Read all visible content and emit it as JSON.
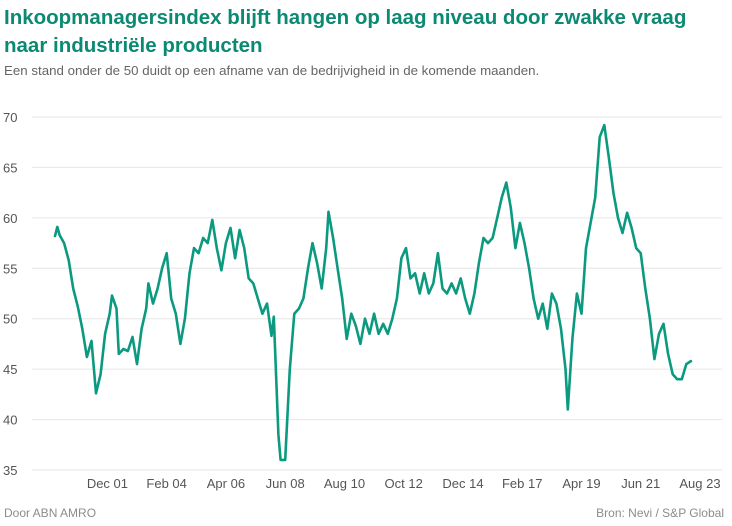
{
  "header": {
    "title": "Inkoopmanagersindex blijft hangen op laag niveau door zwakke vraag naar industriële producten",
    "subtitle": "Een stand onder de 50 duidt op een afname van de bedrijvigheid in de komende maanden."
  },
  "footer": {
    "credit": "Door ABN AMRO",
    "source": "Bron: Nevi / S&P Global"
  },
  "colors": {
    "line": "#0b9a80",
    "title": "#0b8a73",
    "grid": "#e6e6e6"
  },
  "chart_data": {
    "type": "line",
    "title": "Inkoopmanagersindex blijft hangen op laag niveau door zwakke vraag naar industriële producten",
    "ylim": [
      35,
      70
    ],
    "xlim": [
      "2000-01",
      "2023-08"
    ],
    "yticks": [
      35,
      40,
      45,
      50,
      55,
      60,
      65,
      70
    ],
    "xticks": [
      {
        "label": "Dec 01",
        "date": "2001-12"
      },
      {
        "label": "Feb 04",
        "date": "2004-02"
      },
      {
        "label": "Apr 06",
        "date": "2006-04"
      },
      {
        "label": "Jun 08",
        "date": "2008-06"
      },
      {
        "label": "Aug 10",
        "date": "2010-08"
      },
      {
        "label": "Oct 12",
        "date": "2012-10"
      },
      {
        "label": "Dec 14",
        "date": "2014-12"
      },
      {
        "label": "Feb 17",
        "date": "2017-02"
      },
      {
        "label": "Apr 19",
        "date": "2019-04"
      },
      {
        "label": "Jun 21",
        "date": "2021-06"
      },
      {
        "label": "Aug 23",
        "date": "2023-08"
      }
    ],
    "grid": true,
    "series": [
      {
        "points": [
          [
            "2000-01",
            58.2
          ],
          [
            "2000-02",
            59.1
          ],
          [
            "2000-03",
            58.3
          ],
          [
            "2000-05",
            57.5
          ],
          [
            "2000-07",
            55.8
          ],
          [
            "2000-09",
            53.0
          ],
          [
            "2000-11",
            51.2
          ],
          [
            "2001-01",
            49.0
          ],
          [
            "2001-03",
            46.2
          ],
          [
            "2001-05",
            47.8
          ],
          [
            "2001-07",
            42.6
          ],
          [
            "2001-09",
            44.5
          ],
          [
            "2001-11",
            48.5
          ],
          [
            "2002-01",
            50.5
          ],
          [
            "2002-02",
            52.3
          ],
          [
            "2002-04",
            51.0
          ],
          [
            "2002-05",
            46.5
          ],
          [
            "2002-07",
            47.0
          ],
          [
            "2002-09",
            46.8
          ],
          [
            "2002-11",
            48.2
          ],
          [
            "2003-01",
            45.5
          ],
          [
            "2003-03",
            49.0
          ],
          [
            "2003-05",
            51.0
          ],
          [
            "2003-06",
            53.5
          ],
          [
            "2003-08",
            51.5
          ],
          [
            "2003-10",
            53.0
          ],
          [
            "2003-12",
            55.0
          ],
          [
            "2004-02",
            56.5
          ],
          [
            "2004-04",
            52.0
          ],
          [
            "2004-06",
            50.5
          ],
          [
            "2004-08",
            47.5
          ],
          [
            "2004-10",
            50.0
          ],
          [
            "2004-12",
            54.5
          ],
          [
            "2005-02",
            57.0
          ],
          [
            "2005-04",
            56.5
          ],
          [
            "2005-06",
            58.0
          ],
          [
            "2005-08",
            57.5
          ],
          [
            "2005-10",
            59.8
          ],
          [
            "2005-12",
            57.0
          ],
          [
            "2006-02",
            54.8
          ],
          [
            "2006-04",
            57.5
          ],
          [
            "2006-06",
            59.0
          ],
          [
            "2006-08",
            56.0
          ],
          [
            "2006-10",
            58.8
          ],
          [
            "2006-12",
            57.0
          ],
          [
            "2007-02",
            54.0
          ],
          [
            "2007-04",
            53.5
          ],
          [
            "2007-06",
            52.0
          ],
          [
            "2007-08",
            50.5
          ],
          [
            "2007-10",
            51.5
          ],
          [
            "2007-12",
            48.3
          ],
          [
            "2008-01",
            50.2
          ],
          [
            "2008-03",
            38.5
          ],
          [
            "2008-04",
            36.0
          ],
          [
            "2008-06",
            36.0
          ],
          [
            "2008-08",
            45.0
          ],
          [
            "2008-10",
            50.5
          ],
          [
            "2008-12",
            51.0
          ],
          [
            "2009-02",
            52.0
          ],
          [
            "2009-04",
            55.0
          ],
          [
            "2009-06",
            57.5
          ],
          [
            "2009-08",
            55.5
          ],
          [
            "2009-10",
            53.0
          ],
          [
            "2009-12",
            57.0
          ],
          [
            "2010-01",
            60.6
          ],
          [
            "2010-03",
            58.0
          ],
          [
            "2010-05",
            55.0
          ],
          [
            "2010-07",
            52.0
          ],
          [
            "2010-09",
            48.0
          ],
          [
            "2010-11",
            50.5
          ],
          [
            "2011-01",
            49.3
          ],
          [
            "2011-03",
            47.5
          ],
          [
            "2011-05",
            50.0
          ],
          [
            "2011-07",
            48.5
          ],
          [
            "2011-09",
            50.5
          ],
          [
            "2011-11",
            48.5
          ],
          [
            "2012-01",
            49.5
          ],
          [
            "2012-03",
            48.5
          ],
          [
            "2012-05",
            50.0
          ],
          [
            "2012-07",
            52.0
          ],
          [
            "2012-09",
            56.0
          ],
          [
            "2012-11",
            57.0
          ],
          [
            "2013-01",
            54.0
          ],
          [
            "2013-03",
            54.5
          ],
          [
            "2013-05",
            52.5
          ],
          [
            "2013-07",
            54.5
          ],
          [
            "2013-09",
            52.5
          ],
          [
            "2013-11",
            53.5
          ],
          [
            "2014-01",
            56.5
          ],
          [
            "2014-03",
            53.0
          ],
          [
            "2014-05",
            52.5
          ],
          [
            "2014-07",
            53.5
          ],
          [
            "2014-09",
            52.5
          ],
          [
            "2014-11",
            54.0
          ],
          [
            "2015-01",
            52.0
          ],
          [
            "2015-03",
            50.5
          ],
          [
            "2015-05",
            52.5
          ],
          [
            "2015-07",
            55.5
          ],
          [
            "2015-09",
            58.0
          ],
          [
            "2015-11",
            57.5
          ],
          [
            "2016-01",
            58.0
          ],
          [
            "2016-03",
            60.0
          ],
          [
            "2016-05",
            62.0
          ],
          [
            "2016-07",
            63.5
          ],
          [
            "2016-09",
            61.0
          ],
          [
            "2016-11",
            57.0
          ],
          [
            "2017-01",
            59.5
          ],
          [
            "2017-03",
            57.5
          ],
          [
            "2017-05",
            55.0
          ],
          [
            "2017-07",
            52.0
          ],
          [
            "2017-09",
            50.0
          ],
          [
            "2017-11",
            51.5
          ],
          [
            "2018-01",
            49.0
          ],
          [
            "2018-03",
            52.5
          ],
          [
            "2018-05",
            51.5
          ],
          [
            "2018-07",
            49.0
          ],
          [
            "2018-09",
            45.0
          ],
          [
            "2018-10",
            41.0
          ],
          [
            "2018-12",
            48.0
          ],
          [
            "2019-02",
            52.5
          ],
          [
            "2019-04",
            50.5
          ],
          [
            "2019-06",
            57.0
          ],
          [
            "2019-08",
            59.5
          ],
          [
            "2019-10",
            62.0
          ],
          [
            "2019-12",
            68.0
          ],
          [
            "2020-02",
            69.2
          ],
          [
            "2020-04",
            66.0
          ],
          [
            "2020-06",
            62.5
          ],
          [
            "2020-08",
            60.0
          ],
          [
            "2020-10",
            58.5
          ],
          [
            "2020-12",
            60.5
          ],
          [
            "2021-02",
            59.0
          ],
          [
            "2021-04",
            57.0
          ],
          [
            "2021-06",
            56.5
          ],
          [
            "2021-08",
            53.0
          ],
          [
            "2021-10",
            50.0
          ],
          [
            "2021-12",
            46.0
          ],
          [
            "2022-02",
            48.5
          ],
          [
            "2022-04",
            49.5
          ],
          [
            "2022-06",
            46.5
          ],
          [
            "2022-08",
            44.5
          ],
          [
            "2022-10",
            44.0
          ],
          [
            "2022-12",
            44.0
          ],
          [
            "2023-02",
            45.5
          ],
          [
            "2023-04",
            45.8
          ]
        ]
      }
    ]
  }
}
